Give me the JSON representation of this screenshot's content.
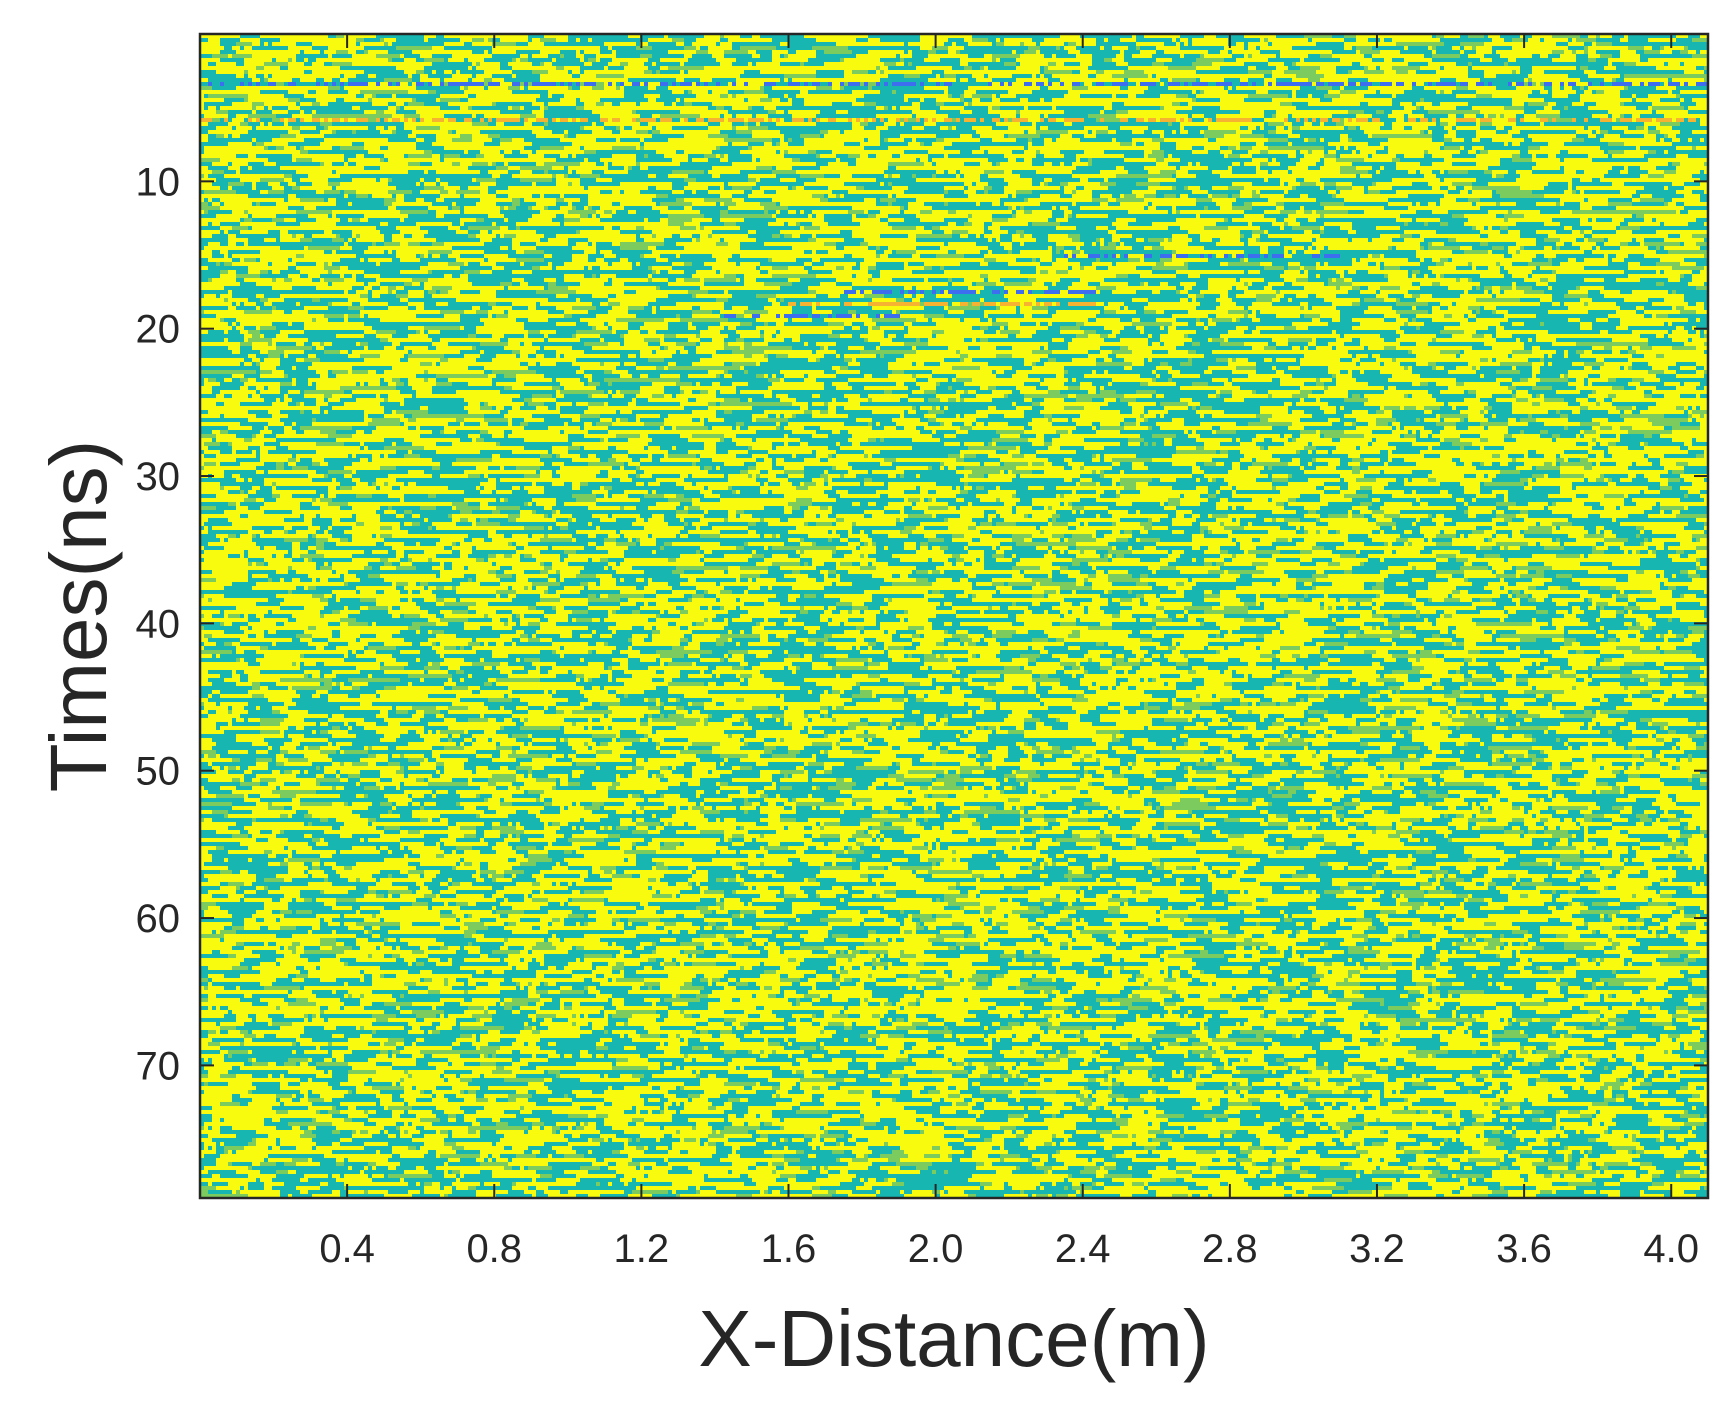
{
  "chart_data": {
    "type": "heatmap",
    "title": "",
    "xlabel": "X-Distance(m)",
    "ylabel": "Times(ns)",
    "xlim": [
      0.0,
      4.1
    ],
    "ylim": [
      79,
      0
    ],
    "y_reversed": true,
    "xticks": [
      0.4,
      0.8,
      1.2,
      1.6,
      2.0,
      2.4,
      2.8,
      3.2,
      3.6,
      4.0
    ],
    "xtick_labels": [
      "0.4",
      "0.8",
      "1.2",
      "1.6",
      "2.0",
      "2.4",
      "2.8",
      "3.2",
      "3.6",
      "4.0"
    ],
    "yticks": [
      10,
      20,
      30,
      40,
      50,
      60,
      70
    ],
    "ytick_labels": [
      "10",
      "20",
      "30",
      "40",
      "50",
      "60",
      "70"
    ],
    "grid": false,
    "colorbar": false,
    "colormap": "parula",
    "colors": {
      "dominant_high": "#f9fb0e",
      "dominant_low": "#17b6b0",
      "mid": "#7ccb5e",
      "negative_peak": "#3d6ef0",
      "positive_peak": "#f5b331"
    },
    "features": [
      {
        "kind": "horizontal-reflection",
        "time_ns": 3.2,
        "x_from": 0.0,
        "x_to": 4.1,
        "polarity": "negative",
        "color": "#3d6ef0"
      },
      {
        "kind": "horizontal-reflection",
        "time_ns": 5.6,
        "x_from": 0.0,
        "x_to": 4.1,
        "polarity": "positive",
        "color": "#f5b331"
      },
      {
        "kind": "reflection-segment",
        "time_ns": 15.0,
        "x_from": 2.35,
        "x_to": 3.1,
        "polarity": "negative",
        "color": "#3d6ef0"
      },
      {
        "kind": "reflection-segment",
        "time_ns": 17.4,
        "x_from": 1.75,
        "x_to": 2.45,
        "polarity": "negative",
        "color": "#3d6ef0"
      },
      {
        "kind": "reflection-segment",
        "time_ns": 18.2,
        "x_from": 1.6,
        "x_to": 2.45,
        "polarity": "positive",
        "color": "#f5b331"
      },
      {
        "kind": "reflection-segment",
        "time_ns": 19.0,
        "x_from": 1.4,
        "x_to": 1.9,
        "polarity": "negative",
        "color": "#3d6ef0"
      }
    ]
  }
}
